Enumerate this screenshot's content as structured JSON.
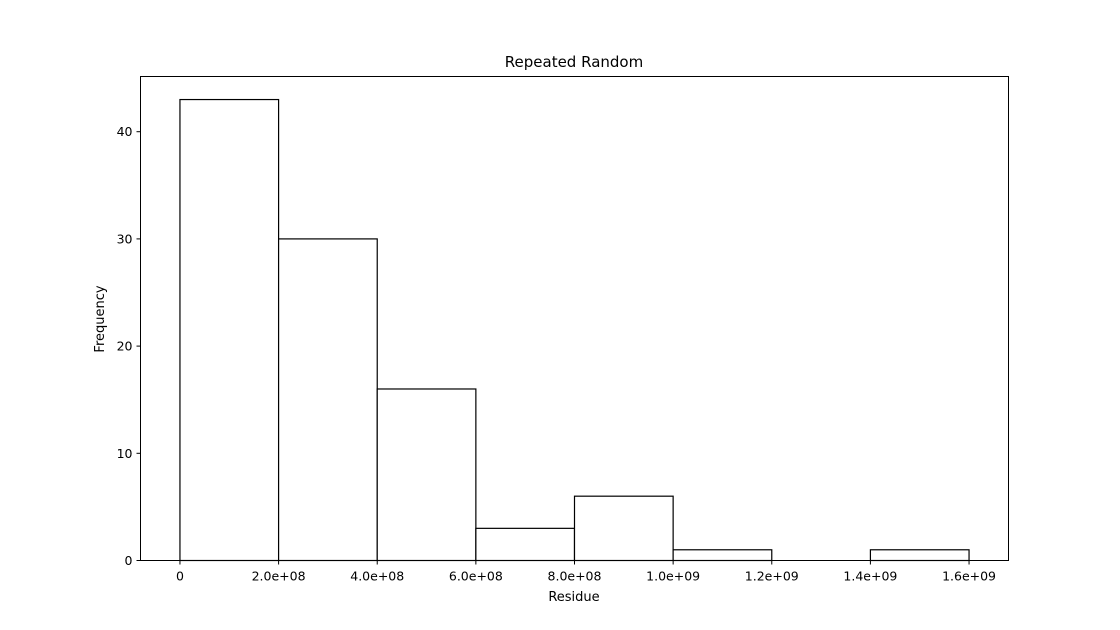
{
  "chart_data": {
    "type": "bar",
    "title": "Repeated Random",
    "xlabel": "Residue",
    "ylabel": "Frequency",
    "bins": [
      {
        "start": 0,
        "end": 200000000,
        "count": 43
      },
      {
        "start": 200000000,
        "end": 400000000,
        "count": 30
      },
      {
        "start": 400000000,
        "end": 600000000,
        "count": 16
      },
      {
        "start": 600000000,
        "end": 800000000,
        "count": 3
      },
      {
        "start": 800000000,
        "end": 1000000000,
        "count": 6
      },
      {
        "start": 1000000000,
        "end": 1200000000,
        "count": 1
      },
      {
        "start": 1200000000,
        "end": 1400000000,
        "count": 0
      },
      {
        "start": 1400000000,
        "end": 1600000000,
        "count": 1
      }
    ],
    "xlim": [
      -80000000,
      1680000000
    ],
    "ylim": [
      0,
      45.15
    ],
    "xticks": [
      {
        "value": 0,
        "label": "0"
      },
      {
        "value": 200000000,
        "label": "2.0e+08"
      },
      {
        "value": 400000000,
        "label": "4.0e+08"
      },
      {
        "value": 600000000,
        "label": "6.0e+08"
      },
      {
        "value": 800000000,
        "label": "8.0e+08"
      },
      {
        "value": 1000000000,
        "label": "1.0e+09"
      },
      {
        "value": 1200000000,
        "label": "1.2e+09"
      },
      {
        "value": 1400000000,
        "label": "1.4e+09"
      },
      {
        "value": 1600000000,
        "label": "1.6e+09"
      }
    ],
    "yticks": [
      {
        "value": 0,
        "label": "0"
      },
      {
        "value": 10,
        "label": "10"
      },
      {
        "value": 20,
        "label": "20"
      },
      {
        "value": 30,
        "label": "30"
      },
      {
        "value": 40,
        "label": "40"
      }
    ],
    "grid": false,
    "colors": {
      "bar_fill": "#ffffff",
      "bar_edge": "#000000",
      "axes": "#000000"
    }
  }
}
